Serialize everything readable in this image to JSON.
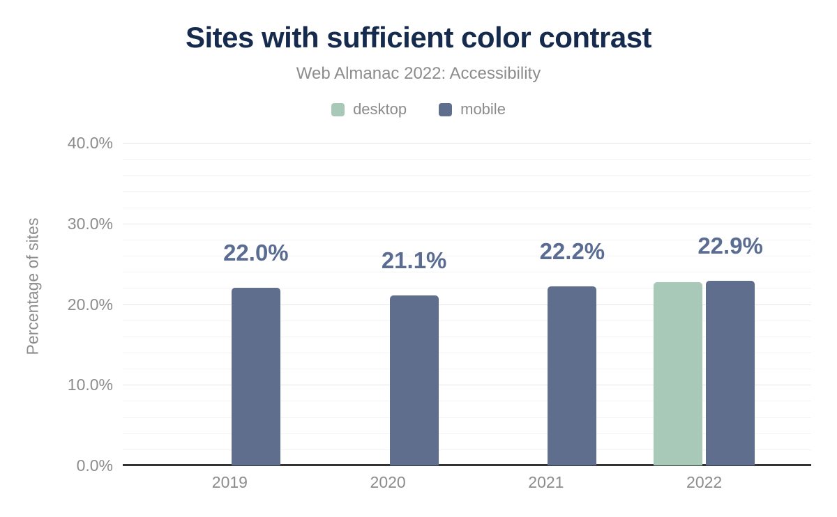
{
  "header": {
    "title": "Sites with sufficient color contrast",
    "subtitle": "Web Almanac 2022: Accessibility"
  },
  "legend": [
    {
      "label": "desktop",
      "color": "#a9c9b8"
    },
    {
      "label": "mobile",
      "color": "#5f6e8c"
    }
  ],
  "chart_data": {
    "type": "bar",
    "title": "Sites with sufficient color contrast",
    "subtitle": "Web Almanac 2022: Accessibility",
    "categories": [
      "2019",
      "2020",
      "2021",
      "2022"
    ],
    "series": [
      {
        "name": "desktop",
        "color": "#a9c9b8",
        "values": [
          null,
          null,
          null,
          22.7
        ]
      },
      {
        "name": "mobile",
        "color": "#5f6e8c",
        "values": [
          22.0,
          21.1,
          22.2,
          22.9
        ]
      }
    ],
    "bar_labels": {
      "series": "mobile",
      "texts": [
        "22.0%",
        "21.1%",
        "22.2%",
        "22.9%"
      ]
    },
    "xlabel": "",
    "ylabel": "Percentage of sites",
    "ylim": [
      0,
      40
    ],
    "y_ticks": [
      0,
      10,
      20,
      30,
      40
    ],
    "y_tick_labels": [
      "0.0%",
      "10.0%",
      "20.0%",
      "30.0%",
      "40.0%"
    ],
    "y_minor_step": 2,
    "grid": true,
    "legend_position": "top"
  },
  "colors": {
    "title": "#152a4d",
    "muted_text": "#8c8c8c",
    "data_label": "#5a6c92",
    "desktop": "#a9c9b8",
    "mobile": "#5f6e8c",
    "grid_major": "#e6e6e6",
    "grid_minor": "#f4f4f4",
    "axis_line": "#333333",
    "background": "#ffffff"
  }
}
